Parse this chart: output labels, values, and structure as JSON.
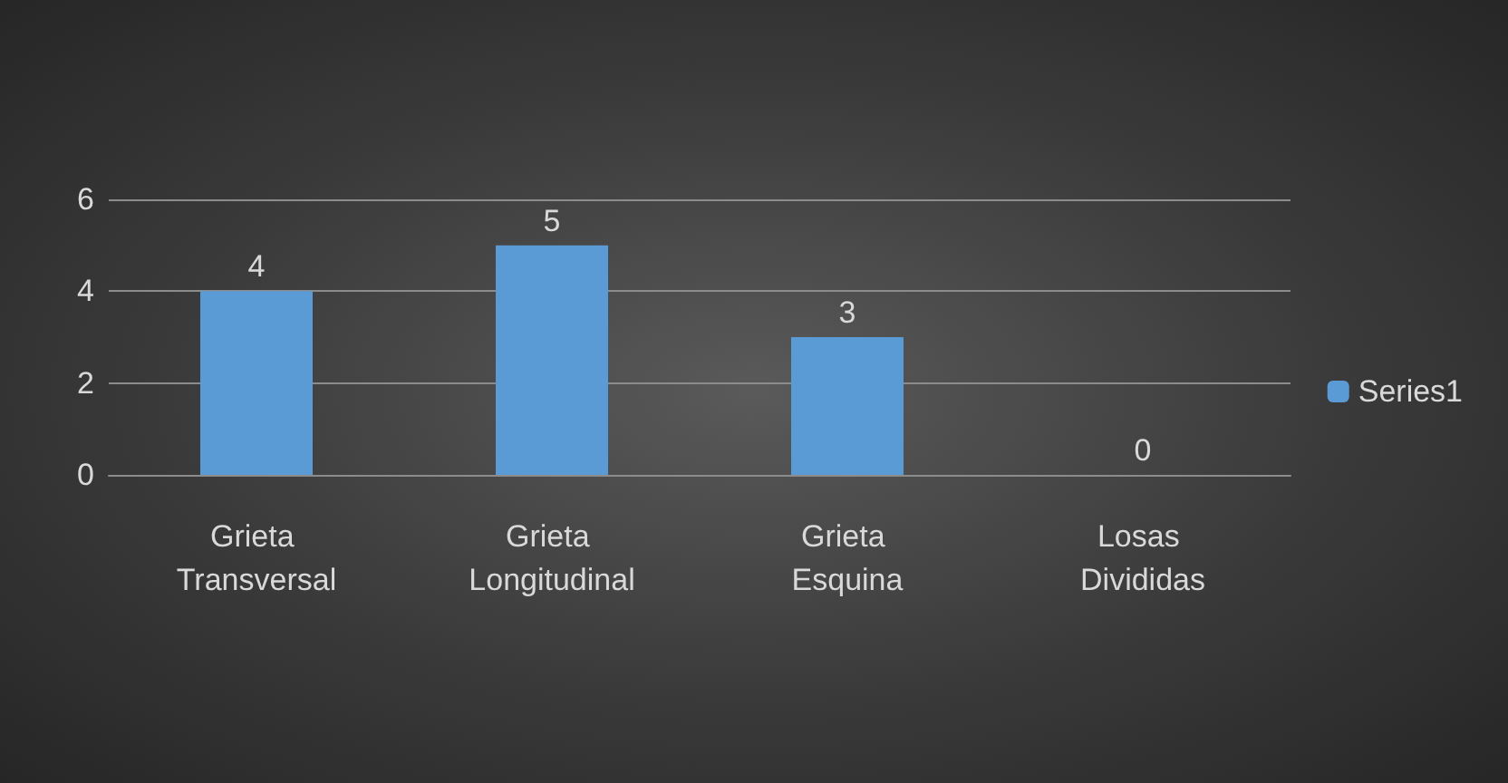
{
  "chart_data": {
    "type": "bar",
    "categories": [
      "Grieta Transversal",
      "Grieta Longitudinal",
      "Grieta Esquina",
      "Losas Divididas"
    ],
    "series": [
      {
        "name": "Series1",
        "color": "#5b9bd5",
        "values": [
          4,
          5,
          3,
          0
        ]
      }
    ],
    "ylim": [
      0,
      6
    ],
    "yticks": [
      0,
      2,
      4,
      6
    ],
    "grid": "y",
    "legend": "right",
    "data_labels": true
  }
}
